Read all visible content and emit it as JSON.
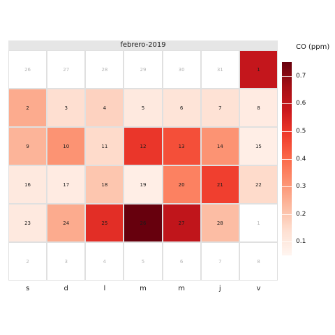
{
  "chart_data": {
    "type": "heatmap",
    "title": "febrero-2019",
    "legend_title": "CO (ppm)",
    "legend_ticks": [
      0.1,
      0.2,
      0.3,
      0.4,
      0.5,
      0.6,
      0.7
    ],
    "value_range": [
      0.05,
      0.75
    ],
    "weekday_labels": [
      "s",
      "d",
      "l",
      "m",
      "m",
      "j",
      "v"
    ],
    "cells": [
      {
        "row": 0,
        "col": 0,
        "label": "26",
        "value": null,
        "in_month": false
      },
      {
        "row": 0,
        "col": 1,
        "label": "27",
        "value": null,
        "in_month": false
      },
      {
        "row": 0,
        "col": 2,
        "label": "28",
        "value": null,
        "in_month": false
      },
      {
        "row": 0,
        "col": 3,
        "label": "29",
        "value": null,
        "in_month": false
      },
      {
        "row": 0,
        "col": 4,
        "label": "30",
        "value": null,
        "in_month": false
      },
      {
        "row": 0,
        "col": 5,
        "label": "31",
        "value": null,
        "in_month": false
      },
      {
        "row": 0,
        "col": 6,
        "label": "1",
        "value": 0.59,
        "in_month": true
      },
      {
        "row": 1,
        "col": 0,
        "label": "2",
        "value": 0.26,
        "in_month": true
      },
      {
        "row": 1,
        "col": 1,
        "label": "3",
        "value": 0.14,
        "in_month": true
      },
      {
        "row": 1,
        "col": 2,
        "label": "4",
        "value": 0.17,
        "in_month": true
      },
      {
        "row": 1,
        "col": 3,
        "label": "5",
        "value": 0.1,
        "in_month": true
      },
      {
        "row": 1,
        "col": 4,
        "label": "6",
        "value": 0.12,
        "in_month": true
      },
      {
        "row": 1,
        "col": 5,
        "label": "7",
        "value": 0.13,
        "in_month": true
      },
      {
        "row": 1,
        "col": 6,
        "label": "8",
        "value": 0.09,
        "in_month": true
      },
      {
        "row": 2,
        "col": 0,
        "label": "9",
        "value": 0.24,
        "in_month": true
      },
      {
        "row": 2,
        "col": 1,
        "label": "10",
        "value": 0.31,
        "in_month": true
      },
      {
        "row": 2,
        "col": 2,
        "label": "11",
        "value": 0.15,
        "in_month": true
      },
      {
        "row": 2,
        "col": 3,
        "label": "12",
        "value": 0.5,
        "in_month": true
      },
      {
        "row": 2,
        "col": 4,
        "label": "13",
        "value": 0.45,
        "in_month": true
      },
      {
        "row": 2,
        "col": 5,
        "label": "14",
        "value": 0.31,
        "in_month": true
      },
      {
        "row": 2,
        "col": 6,
        "label": "15",
        "value": 0.08,
        "in_month": true
      },
      {
        "row": 3,
        "col": 0,
        "label": "16",
        "value": 0.1,
        "in_month": true
      },
      {
        "row": 3,
        "col": 1,
        "label": "17",
        "value": 0.09,
        "in_month": true
      },
      {
        "row": 3,
        "col": 2,
        "label": "18",
        "value": 0.2,
        "in_month": true
      },
      {
        "row": 3,
        "col": 3,
        "label": "19",
        "value": 0.08,
        "in_month": true
      },
      {
        "row": 3,
        "col": 4,
        "label": "20",
        "value": 0.35,
        "in_month": true
      },
      {
        "row": 3,
        "col": 5,
        "label": "21",
        "value": 0.48,
        "in_month": true
      },
      {
        "row": 3,
        "col": 6,
        "label": "22",
        "value": 0.15,
        "in_month": true
      },
      {
        "row": 4,
        "col": 0,
        "label": "23",
        "value": 0.1,
        "in_month": true
      },
      {
        "row": 4,
        "col": 1,
        "label": "24",
        "value": 0.26,
        "in_month": true
      },
      {
        "row": 4,
        "col": 2,
        "label": "25",
        "value": 0.52,
        "in_month": true
      },
      {
        "row": 4,
        "col": 3,
        "label": "26",
        "value": 0.75,
        "in_month": true
      },
      {
        "row": 4,
        "col": 4,
        "label": "27",
        "value": 0.6,
        "in_month": true
      },
      {
        "row": 4,
        "col": 5,
        "label": "28",
        "value": 0.22,
        "in_month": true
      },
      {
        "row": 4,
        "col": 6,
        "label": "1",
        "value": null,
        "in_month": false
      },
      {
        "row": 5,
        "col": 0,
        "label": "2",
        "value": null,
        "in_month": false
      },
      {
        "row": 5,
        "col": 1,
        "label": "3",
        "value": null,
        "in_month": false
      },
      {
        "row": 5,
        "col": 2,
        "label": "4",
        "value": null,
        "in_month": false
      },
      {
        "row": 5,
        "col": 3,
        "label": "5",
        "value": null,
        "in_month": false
      },
      {
        "row": 5,
        "col": 4,
        "label": "6",
        "value": null,
        "in_month": false
      },
      {
        "row": 5,
        "col": 5,
        "label": "7",
        "value": null,
        "in_month": false
      },
      {
        "row": 5,
        "col": 6,
        "label": "8",
        "value": null,
        "in_month": false
      }
    ]
  }
}
